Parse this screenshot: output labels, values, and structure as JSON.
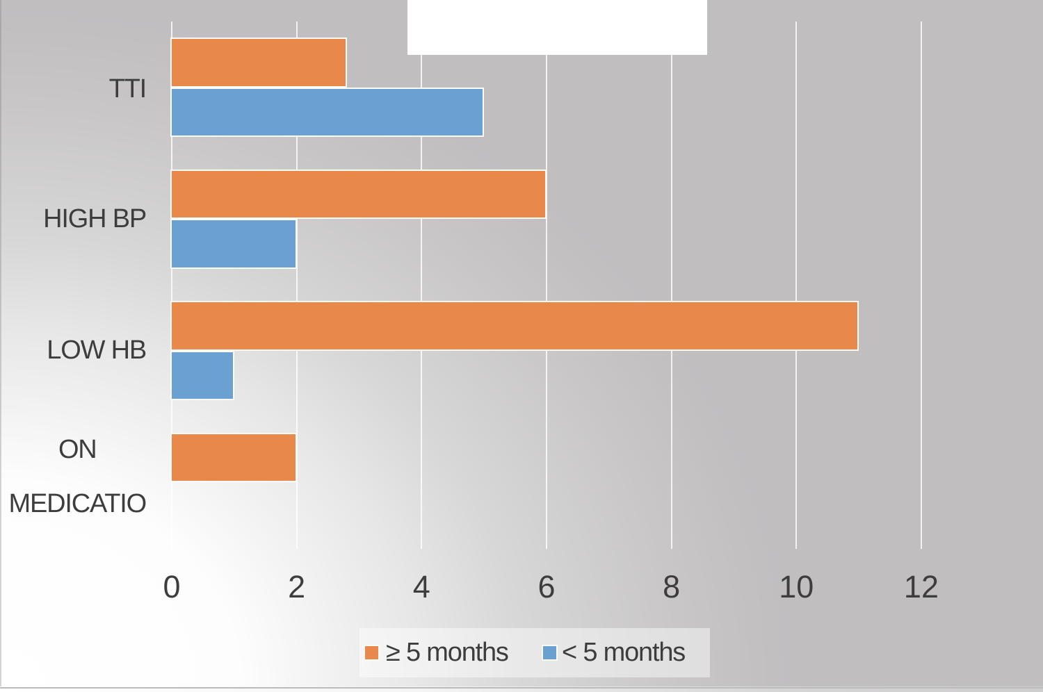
{
  "chart_data": {
    "type": "bar",
    "orientation": "horizontal",
    "title": "",
    "categories": [
      {
        "label": "TTI",
        "lines": [
          "TTI"
        ]
      },
      {
        "label": "HIGH BP",
        "lines": [
          "HIGH BP"
        ]
      },
      {
        "label": "LOW HB",
        "lines": [
          "LOW HB"
        ]
      },
      {
        "label": "ON MEDICATIO",
        "lines": [
          "ON",
          "MEDICATIO"
        ]
      }
    ],
    "series": [
      {
        "name": "≥ 5 months",
        "color": "#e8884a",
        "values": [
          2.8,
          6,
          11,
          2
        ]
      },
      {
        "name": "< 5 months",
        "color": "#6ba0d2",
        "values": [
          5,
          2,
          1,
          0
        ]
      }
    ],
    "x_ticks": [
      "0",
      "2",
      "4",
      "6",
      "8",
      "10",
      "12"
    ],
    "xlim": [
      0,
      12
    ],
    "grid": true,
    "legend_position": "bottom"
  },
  "colors": {
    "background_gray": "#c1bfc0",
    "background_highlight": "#ffffff",
    "gridline": "#ffffff",
    "bar_outline": "#fbfaf7",
    "text": "#3d3d3d",
    "legend_background": "#e5e4e5",
    "title_box": "#ffffff",
    "border_line": "#bcbbbc"
  }
}
